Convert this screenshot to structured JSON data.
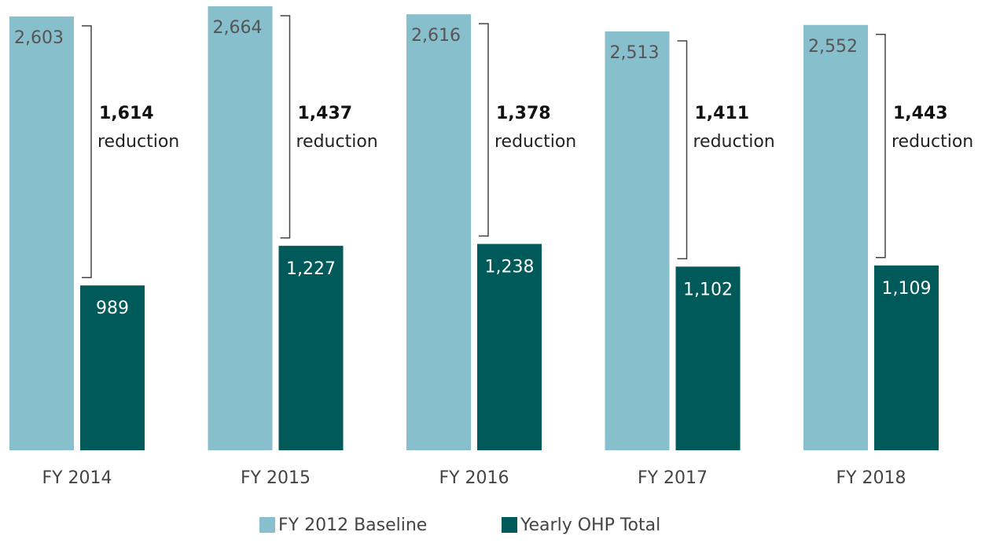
{
  "chart_data": {
    "type": "bar",
    "categories": [
      "FY 2014",
      "FY 2015",
      "FY 2016",
      "FY 2017",
      "FY 2018"
    ],
    "series": [
      {
        "name": "FY 2012 Baseline",
        "color": "#88bfcc",
        "values": [
          2603,
          2664,
          2616,
          2513,
          2552
        ],
        "value_labels": [
          "2,603",
          "2,664",
          "2,616",
          "2,513",
          "2,552"
        ]
      },
      {
        "name": "Yearly OHP Total",
        "color": "#005a5a",
        "values": [
          989,
          1227,
          1238,
          1102,
          1109
        ],
        "value_labels": [
          "989",
          "1,227",
          "1,238",
          "1,102",
          "1,109"
        ]
      }
    ],
    "annotations": [
      {
        "value": 1614,
        "label": "1,614",
        "text": "reduction"
      },
      {
        "value": 1437,
        "label": "1,437",
        "text": "reduction"
      },
      {
        "value": 1378,
        "label": "1,378",
        "text": "reduction"
      },
      {
        "value": 1411,
        "label": "1,411",
        "text": "reduction"
      },
      {
        "value": 1443,
        "label": "1,443",
        "text": "reduction"
      }
    ],
    "legend": "bottom"
  }
}
